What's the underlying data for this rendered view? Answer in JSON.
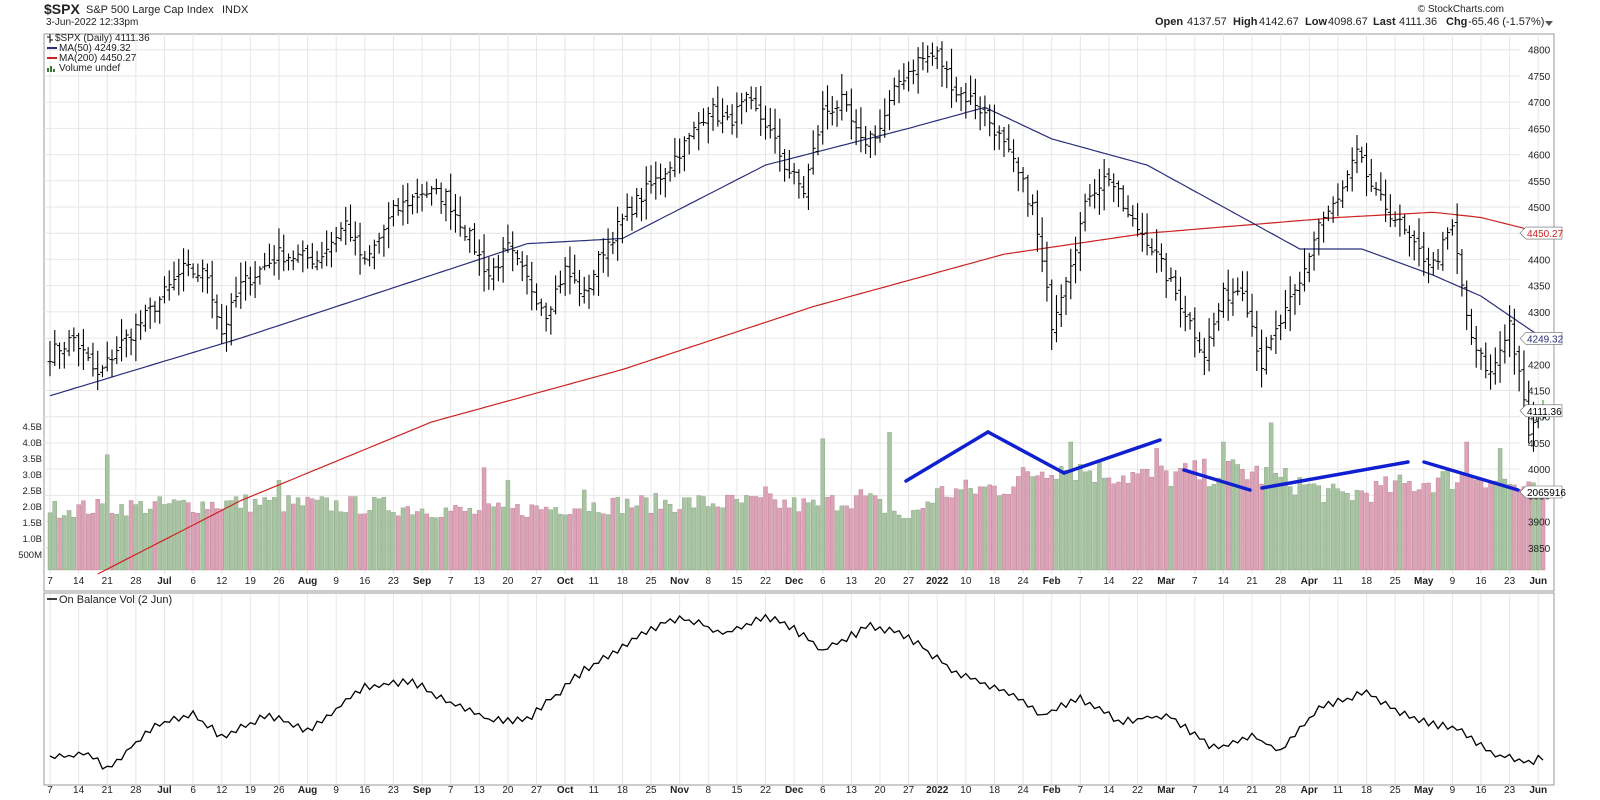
{
  "header": {
    "symbol": "$SPX",
    "name": "S&P 500 Large Cap Index",
    "exchange": "INDX",
    "timestamp": "3-Jun-2022 12:33pm",
    "open_label": "Open",
    "open": "4137.57",
    "high_label": "High",
    "high": "4142.67",
    "low_label": "Low",
    "low": "4098.67",
    "last_label": "Last",
    "last": "4111.36",
    "chg_label": "Chg",
    "chg": "-65.46 (-1.57%)",
    "watermark": "© StockCharts.com"
  },
  "legend": {
    "price": "$SPX (Daily) 4111.36",
    "ma50": "MA(50) 4249.32",
    "ma200": "MA(200) 4450.27",
    "volume": "Volume undef"
  },
  "colors": {
    "ma50": "#2a2f7a",
    "ma200": "#cc2222",
    "vol_up": "#a9c4a3",
    "vol_down": "#dca3b6",
    "trendline": "#1020d0",
    "price_bar": "#000000",
    "grid": "#e6e6e6",
    "last_tag_bg": "#2b2b2b"
  },
  "chart_data": [
    {
      "type": "ohlc",
      "title": "$SPX (Daily) 4111.36",
      "x_ticks": [
        "7",
        "14",
        "21",
        "28",
        "Jul",
        "6",
        "12",
        "19",
        "26",
        "Aug",
        "9",
        "16",
        "23",
        "Sep",
        "7",
        "13",
        "20",
        "27",
        "Oct",
        "11",
        "18",
        "25",
        "Nov",
        "8",
        "15",
        "22",
        "Dec",
        "6",
        "13",
        "20",
        "27",
        "2022",
        "10",
        "18",
        "24",
        "Feb",
        "7",
        "14",
        "22",
        "Mar",
        "7",
        "14",
        "21",
        "28",
        "Apr",
        "11",
        "18",
        "25",
        "May",
        "9",
        "16",
        "23",
        "Jun"
      ],
      "ylim": [
        3800,
        4830
      ],
      "y_ticks": [
        3850,
        3900,
        3950,
        4000,
        4050,
        4100,
        4150,
        4200,
        4250,
        4300,
        4350,
        4400,
        4450,
        4500,
        4550,
        4600,
        4650,
        4700,
        4750,
        4800
      ],
      "price_anchors": [
        [
          0,
          4220
        ],
        [
          5,
          4250
        ],
        [
          10,
          4175
        ],
        [
          14,
          4230
        ],
        [
          20,
          4290
        ],
        [
          28,
          4380
        ],
        [
          33,
          4370
        ],
        [
          36,
          4260
        ],
        [
          40,
          4350
        ],
        [
          48,
          4410
        ],
        [
          56,
          4400
        ],
        [
          62,
          4470
        ],
        [
          66,
          4390
        ],
        [
          72,
          4490
        ],
        [
          78,
          4530
        ],
        [
          83,
          4520
        ],
        [
          88,
          4440
        ],
        [
          92,
          4370
        ],
        [
          96,
          4420
        ],
        [
          100,
          4360
        ],
        [
          104,
          4300
        ],
        [
          108,
          4380
        ],
        [
          112,
          4330
        ],
        [
          116,
          4420
        ],
        [
          122,
          4500
        ],
        [
          128,
          4560
        ],
        [
          134,
          4630
        ],
        [
          138,
          4690
        ],
        [
          142,
          4660
        ],
        [
          146,
          4700
        ],
        [
          150,
          4660
        ],
        [
          154,
          4580
        ],
        [
          158,
          4530
        ],
        [
          162,
          4680
        ],
        [
          166,
          4700
        ],
        [
          170,
          4620
        ],
        [
          174,
          4650
        ],
        [
          178,
          4740
        ],
        [
          182,
          4780
        ],
        [
          186,
          4790
        ],
        [
          190,
          4720
        ],
        [
          194,
          4700
        ],
        [
          198,
          4650
        ],
        [
          202,
          4580
        ],
        [
          206,
          4500
        ],
        [
          210,
          4280
        ],
        [
          214,
          4400
        ],
        [
          218,
          4530
        ],
        [
          222,
          4560
        ],
        [
          226,
          4480
        ],
        [
          230,
          4440
        ],
        [
          234,
          4370
        ],
        [
          238,
          4300
        ],
        [
          242,
          4220
        ],
        [
          246,
          4330
        ],
        [
          250,
          4350
        ],
        [
          254,
          4200
        ],
        [
          258,
          4280
        ],
        [
          262,
          4350
        ],
        [
          266,
          4470
        ],
        [
          270,
          4510
        ],
        [
          274,
          4600
        ],
        [
          278,
          4520
        ],
        [
          282,
          4480
        ],
        [
          286,
          4420
        ],
        [
          290,
          4390
        ],
        [
          294,
          4460
        ],
        [
          298,
          4240
        ],
        [
          302,
          4180
        ],
        [
          306,
          4280
        ],
        [
          310,
          4070
        ],
        [
          313,
          4110
        ]
      ],
      "last_value": 4111.36
    },
    {
      "type": "line",
      "series": [
        {
          "name": "MA(50) 4249.32",
          "anchors": [
            [
              0,
              4140
            ],
            [
              40,
              4250
            ],
            [
              80,
              4370
            ],
            [
              100,
              4430
            ],
            [
              120,
              4440
            ],
            [
              150,
              4580
            ],
            [
              180,
              4650
            ],
            [
              196,
              4690
            ],
            [
              210,
              4630
            ],
            [
              230,
              4580
            ],
            [
              250,
              4480
            ],
            [
              262,
              4420
            ],
            [
              275,
              4420
            ],
            [
              290,
              4370
            ],
            [
              300,
              4330
            ],
            [
              313,
              4249.32
            ]
          ]
        },
        {
          "name": "MA(200) 4450.27",
          "anchors": [
            [
              10,
              3800
            ],
            [
              40,
              3940
            ],
            [
              80,
              4090
            ],
            [
              120,
              4190
            ],
            [
              160,
              4310
            ],
            [
              200,
              4410
            ],
            [
              230,
              4450
            ],
            [
              270,
              4480
            ],
            [
              290,
              4490
            ],
            [
              300,
              4480
            ],
            [
              313,
              4450.27
            ]
          ]
        }
      ]
    },
    {
      "type": "bar",
      "title": "Volume",
      "y_ticks": [
        "500M",
        "1.0B",
        "1.5B",
        "2.0B",
        "2.5B",
        "3.0B",
        "3.5B",
        "4.0B",
        "4.5B"
      ],
      "ylim": [
        0,
        4.6
      ],
      "last_value": "2065916",
      "volume_anchors": [
        [
          0,
          1.9
        ],
        [
          20,
          2.0
        ],
        [
          40,
          2.1
        ],
        [
          70,
          2.0
        ],
        [
          90,
          1.8
        ],
        [
          110,
          2.0
        ],
        [
          130,
          2.1
        ],
        [
          150,
          2.1
        ],
        [
          160,
          2.0
        ],
        [
          170,
          2.3
        ],
        [
          180,
          1.6
        ],
        [
          186,
          2.4
        ],
        [
          200,
          2.6
        ],
        [
          210,
          3.3
        ],
        [
          230,
          2.9
        ],
        [
          250,
          3.1
        ],
        [
          262,
          2.7
        ],
        [
          270,
          2.3
        ],
        [
          290,
          2.8
        ],
        [
          300,
          3.0
        ],
        [
          313,
          2.3
        ]
      ],
      "volume_spikes": [
        [
          12,
          3.6
        ],
        [
          48,
          2.8
        ],
        [
          91,
          3.2
        ],
        [
          96,
          2.8
        ],
        [
          112,
          2.5
        ],
        [
          150,
          2.6
        ],
        [
          162,
          4.1
        ],
        [
          176,
          4.3
        ],
        [
          214,
          4.0
        ],
        [
          232,
          3.8
        ],
        [
          246,
          4.0
        ],
        [
          256,
          4.6
        ],
        [
          297,
          4.0
        ],
        [
          304,
          3.8
        ]
      ]
    },
    {
      "type": "line",
      "title": "On Balance Vol (2 Jun)",
      "obv_anchors": [
        [
          0,
          0.12
        ],
        [
          8,
          0.15
        ],
        [
          12,
          0.05
        ],
        [
          22,
          0.32
        ],
        [
          30,
          0.38
        ],
        [
          36,
          0.25
        ],
        [
          46,
          0.38
        ],
        [
          54,
          0.28
        ],
        [
          66,
          0.55
        ],
        [
          76,
          0.58
        ],
        [
          84,
          0.45
        ],
        [
          92,
          0.35
        ],
        [
          100,
          0.35
        ],
        [
          112,
          0.65
        ],
        [
          126,
          0.9
        ],
        [
          132,
          0.97
        ],
        [
          142,
          0.87
        ],
        [
          150,
          0.98
        ],
        [
          156,
          0.9
        ],
        [
          162,
          0.76
        ],
        [
          172,
          0.92
        ],
        [
          180,
          0.85
        ],
        [
          190,
          0.63
        ],
        [
          200,
          0.53
        ],
        [
          208,
          0.38
        ],
        [
          216,
          0.48
        ],
        [
          224,
          0.34
        ],
        [
          234,
          0.38
        ],
        [
          244,
          0.18
        ],
        [
          252,
          0.25
        ],
        [
          258,
          0.16
        ],
        [
          266,
          0.42
        ],
        [
          276,
          0.52
        ],
        [
          284,
          0.38
        ],
        [
          296,
          0.28
        ],
        [
          302,
          0.15
        ],
        [
          310,
          0.1
        ],
        [
          313,
          0.12
        ]
      ]
    }
  ]
}
